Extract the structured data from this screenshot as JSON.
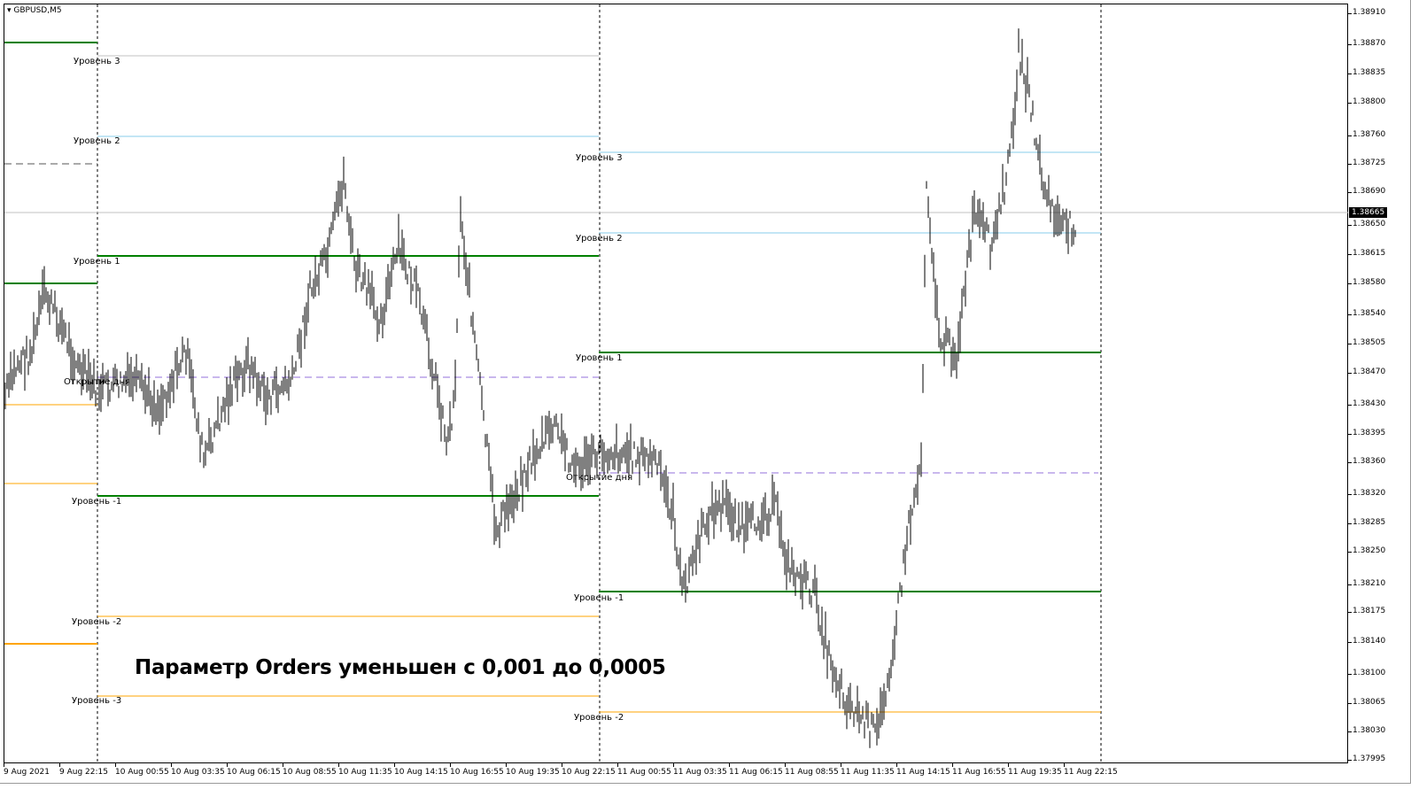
{
  "symbol": "GBPUSD,M5",
  "current_price": "1.38665",
  "note": "Параметр Orders уменьшен с 0,001 до 0,0005",
  "price_ticks": [
    "1.38910",
    "1.38870",
    "1.38835",
    "1.38800",
    "1.38760",
    "1.38725",
    "1.38690",
    "1.38650",
    "1.38615",
    "1.38580",
    "1.38540",
    "1.38505",
    "1.38470",
    "1.38430",
    "1.38395",
    "1.38360",
    "1.38320",
    "1.38285",
    "1.38250",
    "1.38210",
    "1.38175",
    "1.38140",
    "1.38100",
    "1.38065",
    "1.38030",
    "1.37995"
  ],
  "time_ticks": [
    "9 Aug 2021",
    "9 Aug 22:15",
    "10 Aug 00:55",
    "10 Aug 03:35",
    "10 Aug 06:15",
    "10 Aug 08:55",
    "10 Aug 11:35",
    "10 Aug 14:15",
    "10 Aug 16:55",
    "10 Aug 19:35",
    "10 Aug 22:15",
    "11 Aug 00:55",
    "11 Aug 03:35",
    "11 Aug 06:15",
    "11 Aug 08:55",
    "11 Aug 11:35",
    "11 Aug 14:15",
    "11 Aug 16:55",
    "11 Aug 19:35",
    "11 Aug 22:15"
  ],
  "labels": {
    "day2": [
      "Уровень 3",
      "Уровень 2",
      "Уровень 1",
      "Открытие дня",
      "Уровень -1",
      "Уровень -2",
      "Уровень -3"
    ],
    "day3": [
      "Уровень 3",
      "Уровень 2",
      "Уровень 1",
      "Открытие дня",
      "Уровень -1",
      "Уровень -2"
    ]
  },
  "colors": {
    "level_pos": "#008000",
    "level_far": "#87CEEB",
    "level_neg": "#FFA500",
    "day_open": "#9370DB",
    "candles": "#000000",
    "level3_day2": "#C0C0C0"
  }
}
